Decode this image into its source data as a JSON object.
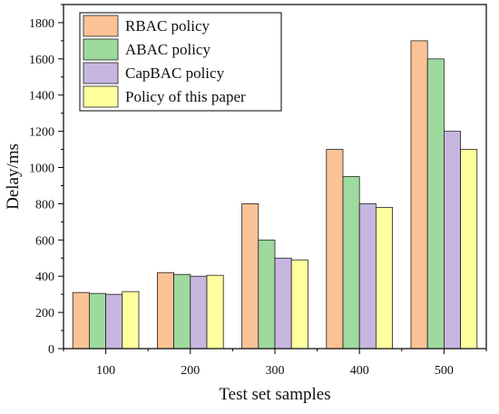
{
  "chart_data": {
    "type": "bar",
    "xlabel": "Test set samples",
    "ylabel": "Delay/ms",
    "categories": [
      "100",
      "200",
      "300",
      "400",
      "500"
    ],
    "ylim": [
      0,
      1900
    ],
    "yticks": [
      0,
      200,
      400,
      600,
      800,
      1000,
      1200,
      1400,
      1600,
      1800
    ],
    "grid": false,
    "legend": "top-left",
    "series": [
      {
        "name": "RBAC policy",
        "color": "#fbc295",
        "values": [
          310,
          420,
          800,
          1100,
          1700
        ]
      },
      {
        "name": "ABAC policy",
        "color": "#9ed99e",
        "values": [
          305,
          410,
          600,
          950,
          1600
        ]
      },
      {
        "name": "CapBAC policy",
        "color": "#c7b6e0",
        "values": [
          300,
          400,
          500,
          800,
          1200
        ]
      },
      {
        "name": "Policy of this paper",
        "color": "#ffff9e",
        "values": [
          315,
          405,
          490,
          780,
          1100
        ]
      }
    ]
  }
}
